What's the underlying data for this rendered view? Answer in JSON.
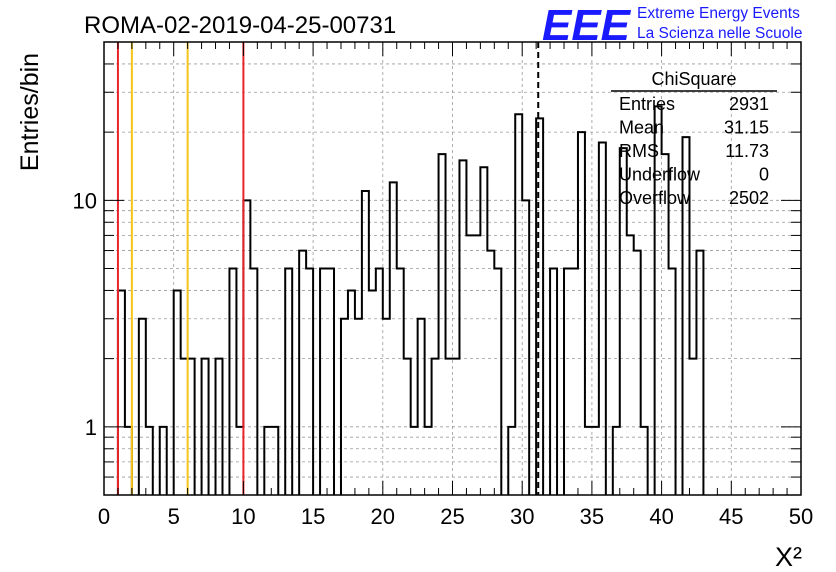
{
  "title": "ROMA-02-2019-04-25-00731",
  "logo": {
    "mark": "EEE",
    "line1": "Extreme Energy Events",
    "line2": "La Scienza nelle Scuole",
    "color": "#1a1aff"
  },
  "colors": {
    "red_line": "#e8242a",
    "yellow_line": "#f5c518",
    "hist": "#000000",
    "grid": "#9a9a9a"
  },
  "stats": {
    "title": "ChiSquare",
    "rows": [
      {
        "label": "Entries",
        "value": "2931"
      },
      {
        "label": "Mean",
        "value": "31.15"
      },
      {
        "label": "RMS",
        "value": "11.73"
      },
      {
        "label": "Underflow",
        "value": "0"
      },
      {
        "label": "Overflow",
        "value": "2502"
      }
    ]
  },
  "chart_data": {
    "type": "bar",
    "histogram": "step",
    "xlabel": "Χ²",
    "ylabel": "Entries/bin",
    "xlim": [
      0,
      50
    ],
    "ylim": [
      0.5,
      50
    ],
    "yscale": "log",
    "grid": true,
    "bin_width": 0.5,
    "x_ticks": [
      "0",
      "5",
      "10",
      "15",
      "20",
      "25",
      "30",
      "35",
      "40",
      "45",
      "50"
    ],
    "y_ticks": [
      "1",
      "10"
    ],
    "values": [
      0,
      0,
      4,
      1,
      0,
      3,
      1,
      0,
      1,
      0,
      4,
      2,
      2,
      0,
      2,
      0,
      2,
      0,
      5,
      1,
      10,
      5,
      0,
      1,
      1,
      0,
      5,
      0,
      6,
      5,
      0,
      5,
      5,
      0,
      3,
      4,
      3,
      11,
      4,
      5,
      3,
      12,
      5,
      2,
      1,
      3,
      1,
      2,
      16,
      2,
      2,
      15,
      7,
      7,
      14,
      6,
      5,
      0,
      1,
      24,
      10,
      0,
      23,
      0,
      5,
      0,
      5,
      5,
      20,
      1,
      1,
      18,
      0,
      1,
      17,
      7,
      6,
      1,
      0,
      26,
      16,
      5,
      0,
      19,
      2,
      6
    ],
    "vlines": [
      {
        "x": 1,
        "color": "red",
        "style": "solid"
      },
      {
        "x": 2,
        "color": "yellow",
        "style": "solid"
      },
      {
        "x": 6,
        "color": "yellow",
        "style": "solid"
      },
      {
        "x": 10,
        "color": "red",
        "style": "solid"
      },
      {
        "x": 31.15,
        "color": "black",
        "style": "dashed"
      }
    ]
  }
}
